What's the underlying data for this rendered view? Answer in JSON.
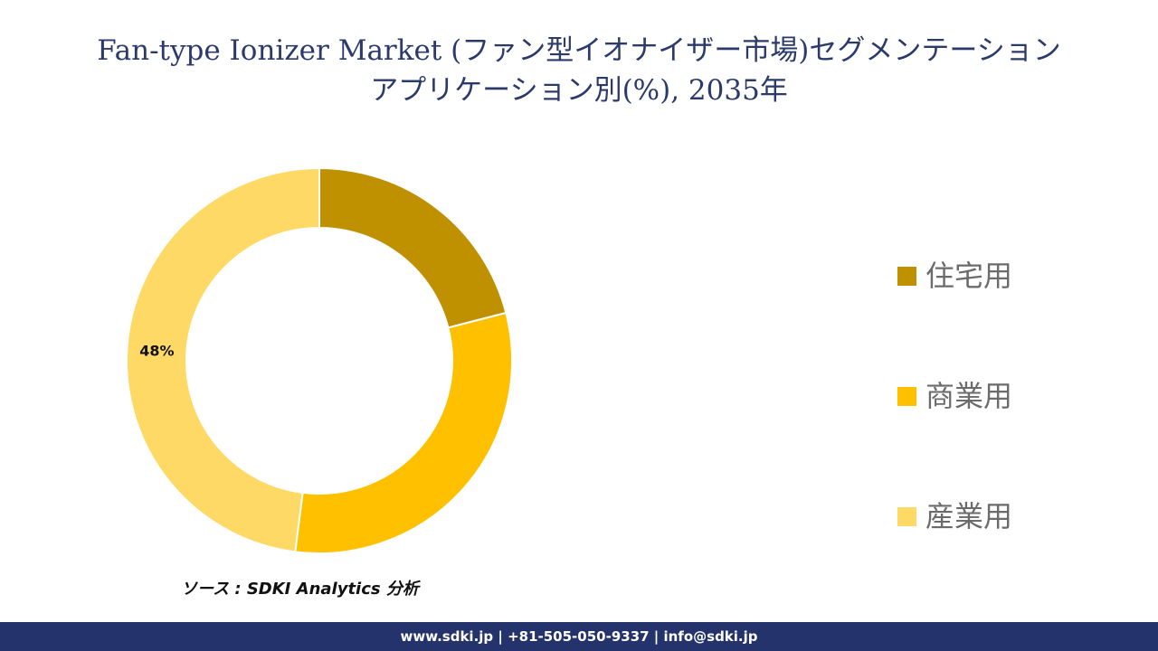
{
  "header": {
    "title_line1": "Fan-type Ionizer Market (ファン型イオナイザー市場)セグメンテーション",
    "title_line2": "アプリケーション別(%), 2035年"
  },
  "chart_data": {
    "type": "pie",
    "style": "donut",
    "title": "Fan-type Ionizer Market (ファン型イオナイザー市場)セグメンテーション アプリケーション別(%), 2035年",
    "categories": [
      "住宅用",
      "商業用",
      "産業用"
    ],
    "values": [
      21,
      31,
      48
    ],
    "colors": [
      "#bf9000",
      "#ffc000",
      "#ffd966"
    ],
    "data_labels": [
      "",
      "",
      "48%"
    ],
    "legend_position": "right"
  },
  "source": "ソース : SDKI Analytics 分析",
  "footer": {
    "contact": "www.sdki.jp | +81-505-050-9337 | info@sdki.jp"
  }
}
